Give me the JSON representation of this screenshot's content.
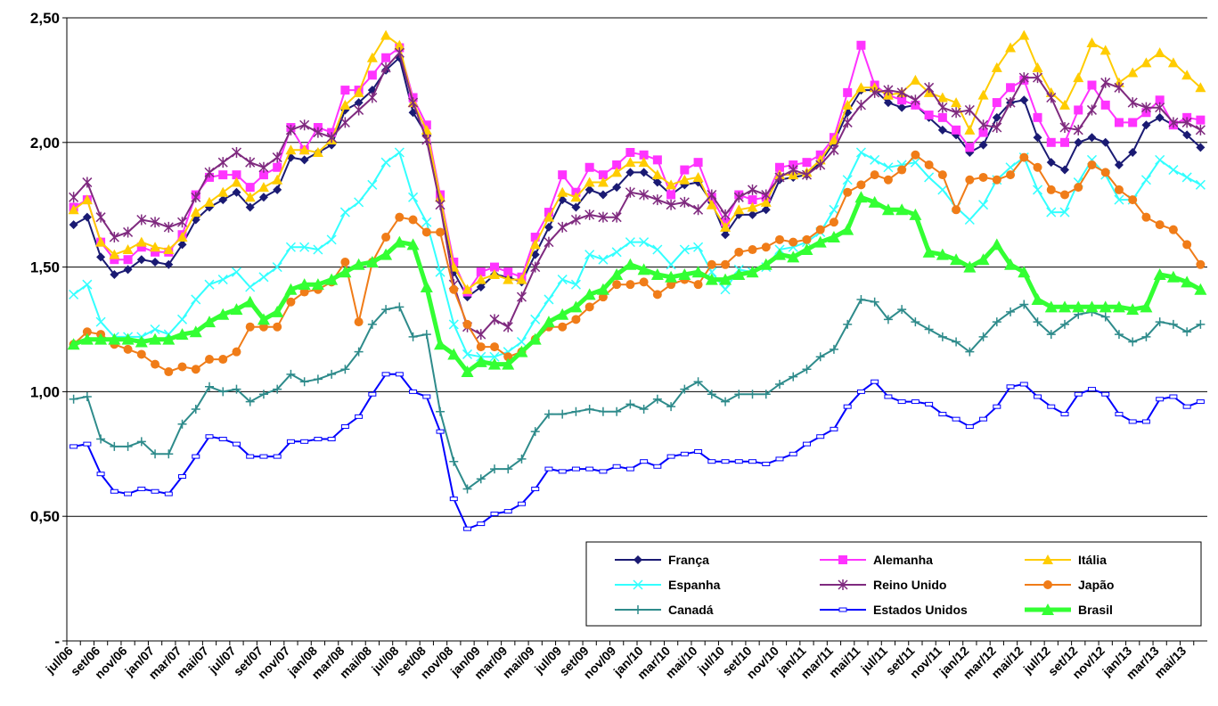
{
  "chart_data": {
    "type": "line",
    "categories": [
      "jul/06",
      null,
      "set/06",
      null,
      "nov/06",
      null,
      "jan/07",
      null,
      "mar/07",
      null,
      "mai/07",
      null,
      "jul/07",
      null,
      "set/07",
      null,
      "nov/07",
      null,
      "jan/08",
      null,
      "mar/08",
      null,
      "mai/08",
      null,
      "jul/08",
      null,
      "set/08",
      null,
      "nov/08",
      null,
      "jan/09",
      null,
      "mar/09",
      null,
      "mai/09",
      null,
      "jul/09",
      null,
      "set/09",
      null,
      "nov/09",
      null,
      "jan/10",
      null,
      "mar/10",
      null,
      "mai/10",
      null,
      "jul/10",
      null,
      "set/10",
      null,
      "nov/10",
      null,
      "jan/11",
      null,
      "mar/11",
      null,
      "mai/11",
      null,
      "jul/11",
      null,
      "set/11",
      null,
      "nov/11",
      null,
      "jan/12",
      null,
      "mar/12",
      null,
      "mai/12",
      null,
      "jul/12",
      null,
      "set/12",
      null,
      "nov/12",
      null,
      "jan/13",
      null,
      "mar/13",
      null,
      "mai/13",
      null
    ],
    "series": [
      {
        "name": "França",
        "color": "#1a1a73",
        "marker": "diamond",
        "values": [
          1.67,
          1.7,
          1.54,
          1.47,
          1.49,
          1.53,
          1.52,
          1.51,
          1.59,
          1.69,
          1.74,
          1.77,
          1.8,
          1.74,
          1.78,
          1.81,
          1.94,
          1.93,
          1.96,
          1.99,
          2.13,
          2.16,
          2.21,
          2.29,
          2.34,
          2.12,
          2.03,
          1.77,
          1.48,
          1.38,
          1.42,
          1.47,
          1.46,
          1.44,
          1.55,
          1.66,
          1.77,
          1.74,
          1.81,
          1.79,
          1.82,
          1.88,
          1.88,
          1.84,
          1.79,
          1.83,
          1.84,
          1.76,
          1.63,
          1.71,
          1.71,
          1.73,
          1.85,
          1.86,
          1.87,
          1.92,
          2.0,
          2.12,
          2.21,
          2.21,
          2.16,
          2.14,
          2.15,
          2.1,
          2.05,
          2.03,
          1.96,
          1.99,
          2.1,
          2.16,
          2.17,
          2.02,
          1.92,
          1.89,
          2.0,
          2.02,
          2.0,
          1.91,
          1.96,
          2.07,
          2.1,
          2.07,
          2.03,
          1.98
        ]
      },
      {
        "name": "Alemanha",
        "color": "#ff33ff",
        "marker": "square",
        "values": [
          1.74,
          1.77,
          1.6,
          1.53,
          1.53,
          1.58,
          1.56,
          1.56,
          1.63,
          1.79,
          1.86,
          1.87,
          1.87,
          1.82,
          1.87,
          1.9,
          2.06,
          1.97,
          2.06,
          2.04,
          2.21,
          2.21,
          2.27,
          2.34,
          2.38,
          2.18,
          2.07,
          1.79,
          1.52,
          1.4,
          1.48,
          1.5,
          1.48,
          1.46,
          1.62,
          1.72,
          1.87,
          1.8,
          1.9,
          1.87,
          1.91,
          1.96,
          1.95,
          1.93,
          1.79,
          1.89,
          1.92,
          1.78,
          1.68,
          1.79,
          1.77,
          1.78,
          1.9,
          1.91,
          1.92,
          1.95,
          2.02,
          2.2,
          2.39,
          2.23,
          2.19,
          2.17,
          2.15,
          2.11,
          2.1,
          2.05,
          1.98,
          2.04,
          2.16,
          2.22,
          2.25,
          2.1,
          2.0,
          2.0,
          2.13,
          2.23,
          2.15,
          2.08,
          2.08,
          2.12,
          2.17,
          2.07,
          2.1,
          2.09
        ]
      },
      {
        "name": "Itália",
        "color": "#ffcc00",
        "marker": "triangle",
        "values": [
          1.73,
          1.77,
          1.6,
          1.55,
          1.57,
          1.6,
          1.58,
          1.57,
          1.62,
          1.72,
          1.76,
          1.8,
          1.84,
          1.78,
          1.82,
          1.85,
          1.97,
          1.97,
          1.96,
          2.01,
          2.15,
          2.2,
          2.34,
          2.43,
          2.39,
          2.16,
          2.05,
          1.78,
          1.5,
          1.41,
          1.45,
          1.47,
          1.45,
          1.45,
          1.59,
          1.7,
          1.8,
          1.78,
          1.84,
          1.84,
          1.88,
          1.92,
          1.92,
          1.87,
          1.83,
          1.85,
          1.86,
          1.75,
          1.66,
          1.73,
          1.74,
          1.76,
          1.87,
          1.87,
          1.88,
          1.93,
          2.01,
          2.15,
          2.22,
          2.22,
          2.19,
          2.2,
          2.25,
          2.2,
          2.18,
          2.16,
          2.05,
          2.19,
          2.3,
          2.38,
          2.43,
          2.3,
          2.2,
          2.15,
          2.26,
          2.4,
          2.37,
          2.24,
          2.28,
          2.32,
          2.36,
          2.32,
          2.27,
          2.22
        ]
      },
      {
        "name": "Espanha",
        "color": "#33ffff",
        "marker": "x",
        "values": [
          1.39,
          1.43,
          1.28,
          1.22,
          1.22,
          1.22,
          1.25,
          1.23,
          1.29,
          1.37,
          1.43,
          1.45,
          1.48,
          1.42,
          1.46,
          1.5,
          1.58,
          1.58,
          1.57,
          1.61,
          1.72,
          1.76,
          1.83,
          1.92,
          1.96,
          1.78,
          1.68,
          1.48,
          1.27,
          1.15,
          1.14,
          1.14,
          1.16,
          1.2,
          1.29,
          1.37,
          1.45,
          1.43,
          1.55,
          1.53,
          1.56,
          1.6,
          1.6,
          1.57,
          1.51,
          1.57,
          1.58,
          1.48,
          1.41,
          1.49,
          1.48,
          1.5,
          1.57,
          1.58,
          1.6,
          1.64,
          1.73,
          1.85,
          1.96,
          1.93,
          1.9,
          1.91,
          1.92,
          1.86,
          1.81,
          1.74,
          1.69,
          1.75,
          1.85,
          1.9,
          1.94,
          1.81,
          1.72,
          1.72,
          1.84,
          1.93,
          1.87,
          1.77,
          1.77,
          1.85,
          1.93,
          1.89,
          1.86,
          1.83
        ]
      },
      {
        "name": "Reino Unido",
        "color": "#7f2a7f",
        "marker": "star",
        "values": [
          1.78,
          1.84,
          1.7,
          1.62,
          1.64,
          1.69,
          1.68,
          1.66,
          1.68,
          1.78,
          1.88,
          1.92,
          1.96,
          1.92,
          1.9,
          1.94,
          2.05,
          2.07,
          2.04,
          2.02,
          2.08,
          2.13,
          2.18,
          2.3,
          2.36,
          2.16,
          2.01,
          1.75,
          1.43,
          1.26,
          1.23,
          1.29,
          1.26,
          1.38,
          1.5,
          1.6,
          1.66,
          1.69,
          1.71,
          1.7,
          1.7,
          1.8,
          1.79,
          1.77,
          1.75,
          1.76,
          1.73,
          1.79,
          1.71,
          1.78,
          1.81,
          1.79,
          1.86,
          1.89,
          1.87,
          1.91,
          1.97,
          2.08,
          2.15,
          2.2,
          2.21,
          2.2,
          2.17,
          2.22,
          2.14,
          2.12,
          2.13,
          2.07,
          2.06,
          2.16,
          2.26,
          2.26,
          2.18,
          2.06,
          2.05,
          2.13,
          2.24,
          2.22,
          2.16,
          2.14,
          2.14,
          2.08,
          2.08,
          2.05
        ]
      },
      {
        "name": "Japão",
        "color": "#f07c18",
        "marker": "circle",
        "values": [
          1.19,
          1.24,
          1.23,
          1.19,
          1.17,
          1.15,
          1.11,
          1.08,
          1.1,
          1.09,
          1.13,
          1.13,
          1.16,
          1.26,
          1.26,
          1.26,
          1.36,
          1.4,
          1.41,
          1.44,
          1.52,
          1.28,
          1.52,
          1.62,
          1.7,
          1.69,
          1.64,
          1.64,
          1.41,
          1.27,
          1.18,
          1.18,
          1.14,
          1.16,
          1.21,
          1.26,
          1.26,
          1.29,
          1.34,
          1.38,
          1.43,
          1.43,
          1.44,
          1.39,
          1.43,
          1.45,
          1.43,
          1.51,
          1.51,
          1.56,
          1.57,
          1.58,
          1.61,
          1.6,
          1.61,
          1.65,
          1.68,
          1.8,
          1.83,
          1.87,
          1.85,
          1.89,
          1.95,
          1.91,
          1.87,
          1.73,
          1.85,
          1.86,
          1.85,
          1.87,
          1.94,
          1.9,
          1.81,
          1.79,
          1.82,
          1.91,
          1.88,
          1.81,
          1.77,
          1.7,
          1.67,
          1.65,
          1.59,
          1.51
        ]
      },
      {
        "name": "Canadá",
        "color": "#2e8b8b",
        "marker": "plus",
        "values": [
          0.97,
          0.98,
          0.81,
          0.78,
          0.78,
          0.8,
          0.75,
          0.75,
          0.87,
          0.93,
          1.02,
          1.0,
          1.01,
          0.96,
          0.99,
          1.01,
          1.07,
          1.04,
          1.05,
          1.07,
          1.09,
          1.16,
          1.27,
          1.33,
          1.34,
          1.22,
          1.23,
          0.92,
          0.72,
          0.61,
          0.65,
          0.69,
          0.69,
          0.73,
          0.84,
          0.91,
          0.91,
          0.92,
          0.93,
          0.92,
          0.92,
          0.95,
          0.93,
          0.97,
          0.94,
          1.01,
          1.04,
          0.99,
          0.96,
          0.99,
          0.99,
          0.99,
          1.03,
          1.06,
          1.09,
          1.14,
          1.17,
          1.27,
          1.37,
          1.36,
          1.29,
          1.33,
          1.28,
          1.25,
          1.22,
          1.2,
          1.16,
          1.22,
          1.28,
          1.32,
          1.35,
          1.28,
          1.23,
          1.27,
          1.31,
          1.32,
          1.3,
          1.23,
          1.2,
          1.22,
          1.28,
          1.27,
          1.24,
          1.27
        ]
      },
      {
        "name": "Estados Unidos",
        "color": "#0000ff",
        "marker": "dash",
        "values": [
          0.78,
          0.79,
          0.67,
          0.6,
          0.59,
          0.61,
          0.6,
          0.59,
          0.66,
          0.74,
          0.82,
          0.81,
          0.79,
          0.74,
          0.74,
          0.74,
          0.8,
          0.8,
          0.81,
          0.81,
          0.86,
          0.9,
          0.99,
          1.07,
          1.07,
          1.0,
          0.98,
          0.84,
          0.57,
          0.45,
          0.47,
          0.51,
          0.52,
          0.55,
          0.61,
          0.69,
          0.68,
          0.69,
          0.69,
          0.68,
          0.7,
          0.69,
          0.72,
          0.7,
          0.74,
          0.75,
          0.76,
          0.72,
          0.72,
          0.72,
          0.72,
          0.71,
          0.73,
          0.75,
          0.79,
          0.82,
          0.85,
          0.94,
          1.0,
          1.04,
          0.98,
          0.96,
          0.96,
          0.95,
          0.91,
          0.89,
          0.86,
          0.89,
          0.94,
          1.02,
          1.03,
          0.98,
          0.94,
          0.91,
          0.99,
          1.01,
          0.99,
          0.91,
          0.88,
          0.88,
          0.97,
          0.98,
          0.94,
          0.96
        ]
      },
      {
        "name": "Brasil",
        "color": "#33ff33",
        "marker": "bigtriangle",
        "values": [
          1.19,
          1.21,
          1.21,
          1.21,
          1.21,
          1.2,
          1.21,
          1.21,
          1.23,
          1.24,
          1.28,
          1.31,
          1.33,
          1.36,
          1.29,
          1.32,
          1.41,
          1.43,
          1.43,
          1.45,
          1.48,
          1.51,
          1.52,
          1.55,
          1.6,
          1.59,
          1.42,
          1.19,
          1.15,
          1.08,
          1.12,
          1.11,
          1.11,
          1.16,
          1.21,
          1.28,
          1.31,
          1.34,
          1.39,
          1.41,
          1.47,
          1.51,
          1.49,
          1.47,
          1.46,
          1.47,
          1.48,
          1.45,
          1.45,
          1.47,
          1.48,
          1.51,
          1.55,
          1.54,
          1.57,
          1.6,
          1.62,
          1.65,
          1.78,
          1.76,
          1.73,
          1.73,
          1.71,
          1.56,
          1.55,
          1.53,
          1.5,
          1.53,
          1.59,
          1.51,
          1.48,
          1.37,
          1.34,
          1.34,
          1.34,
          1.34,
          1.34,
          1.34,
          1.33,
          1.34,
          1.47,
          1.46,
          1.44,
          1.41
        ]
      }
    ],
    "ylim": [
      0,
      2.5
    ],
    "yticks": [
      {
        "value": 0,
        "label": "-"
      },
      {
        "value": 0.5,
        "label": "0,50"
      },
      {
        "value": 1,
        "label": "1,00"
      },
      {
        "value": 1.5,
        "label": "1,50"
      },
      {
        "value": 2,
        "label": "2,00"
      },
      {
        "value": 2.5,
        "label": "2,50"
      }
    ],
    "grid": true,
    "legend": "bottom-right"
  }
}
